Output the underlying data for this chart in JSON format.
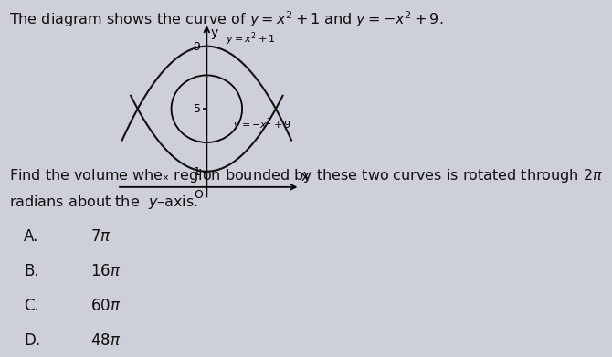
{
  "title_text": "The diagram shows the curve of $y=x^2+1$ and $y=-x^2+9$.",
  "q_line1": "Find the volume wheₓ region bounded by these two curves is rotated through $2\\pi$",
  "q_line2": "radians about the  $y$–axis.",
  "bg_color": "#cdd0d8",
  "diagram_bg": "#cdd0d8",
  "text_color": "#111111",
  "curve_color": "#111111",
  "label1": "$y=x^2+1$",
  "label2": "$y=-x^2+9$",
  "choices": [
    [
      "A.",
      "7π"
    ],
    [
      "B.",
      "16π"
    ],
    [
      "C.",
      "60π"
    ],
    [
      "D.",
      "48π"
    ]
  ],
  "font_size_main": 11.5,
  "font_size_choice": 12
}
